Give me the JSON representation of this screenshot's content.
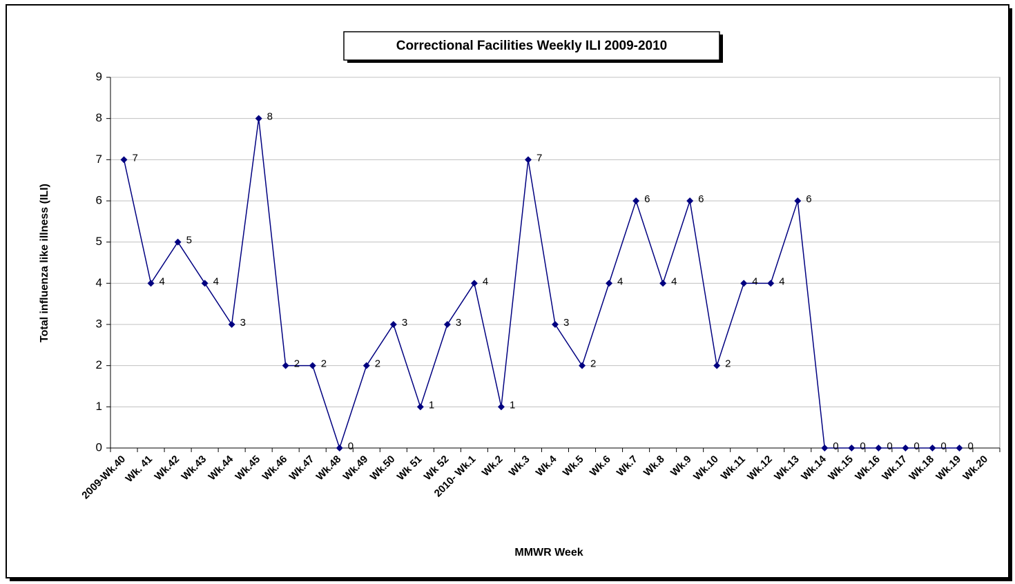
{
  "chart_data": {
    "type": "line",
    "title": "Correctional Facilities Weekly ILI 2009-2010",
    "x_label": "MMWR Week",
    "y_label": "Total influenza like illness (ILI)",
    "categories": [
      "2009-Wk.40",
      "Wk. 41",
      "Wk.42",
      "Wk.43",
      "Wk.44",
      "Wk.45",
      "Wk.46",
      "Wk.47",
      "Wk.48",
      "Wk.49",
      "Wk.50",
      "Wk 51",
      "Wk 52",
      "2010- Wk.1",
      "Wk.2",
      "Wk.3",
      "Wk.4",
      "Wk.5",
      "Wk.6",
      "Wk.7",
      "Wk.8",
      "Wk.9",
      "Wk.10",
      "Wk.11",
      "Wk.12",
      "Wk.13",
      "Wk.14",
      "Wk.15",
      "Wk.16",
      "Wk.17",
      "Wk.18",
      "Wk.19",
      "Wk.20"
    ],
    "values": [
      7,
      4,
      5,
      4,
      3,
      8,
      2,
      2,
      0,
      2,
      3,
      1,
      3,
      4,
      1,
      7,
      3,
      2,
      4,
      6,
      4,
      6,
      2,
      4,
      4,
      6,
      0,
      0,
      0,
      0,
      0,
      0,
      null
    ],
    "color": "#000080",
    "ylim": [
      0,
      9
    ],
    "yticks": [
      0,
      1,
      2,
      3,
      4,
      5,
      6,
      7,
      8,
      9
    ],
    "grid": true
  }
}
